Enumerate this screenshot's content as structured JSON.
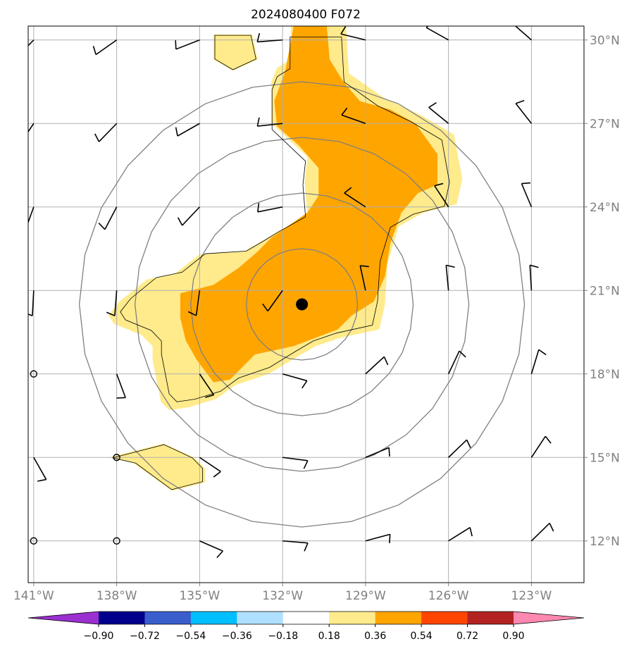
{
  "chart_data": {
    "type": "heatmap",
    "title": "2024080400 F072",
    "xlabel": "",
    "ylabel": "",
    "x_ticks": [
      "141°W",
      "138°W",
      "135°W",
      "132°W",
      "129°W",
      "126°W",
      "123°W"
    ],
    "x_tick_values": [
      -141,
      -138,
      -135,
      -132,
      -129,
      -126,
      -123
    ],
    "y_ticks": [
      "30°N",
      "27°N",
      "24°N",
      "21°N",
      "18°N",
      "15°N",
      "12°N"
    ],
    "y_tick_values": [
      30,
      27,
      24,
      21,
      18,
      15,
      12
    ],
    "xlim": [
      -141.2,
      -121.1
    ],
    "ylim": [
      10.5,
      30.5
    ],
    "grid": true,
    "colorbar": {
      "tick_labels": [
        "−0.90",
        "−0.72",
        "−0.54",
        "−0.36",
        "−0.18",
        "0.18",
        "0.36",
        "0.54",
        "0.72",
        "0.90"
      ],
      "boundaries": [
        -0.9,
        -0.72,
        -0.54,
        -0.36,
        -0.18,
        0.18,
        0.36,
        0.54,
        0.72,
        0.9
      ],
      "colors": [
        "#9b30d0",
        "#00008b",
        "#3a5fcd",
        "#00bfff",
        "#b0e0ff",
        "#ffffff",
        "#ffeb8c",
        "#ffa500",
        "#ff4500",
        "#b22222",
        "#ff88b0"
      ],
      "extend": "both"
    },
    "center_marker": {
      "lon": -131.3,
      "lat": 20.5
    },
    "range_rings_deg": [
      2,
      4,
      6,
      8
    ],
    "shaded_regions": [
      {
        "level": "0.18-0.36",
        "color": "#ffeb8c",
        "polygons": [
          [
            [
              -131.7,
              30.5
            ],
            [
              -129.7,
              30.5
            ],
            [
              -129.6,
              28.8
            ],
            [
              -128.3,
              27.9
            ],
            [
              -127,
              27.3
            ],
            [
              -125.8,
              26.6
            ],
            [
              -125.5,
              25
            ],
            [
              -125.7,
              24.1
            ],
            [
              -126.9,
              23.8
            ],
            [
              -127.8,
              23.3
            ],
            [
              -128.2,
              22
            ],
            [
              -128.3,
              20.5
            ],
            [
              -128.5,
              19.6
            ],
            [
              -129.9,
              19.3
            ],
            [
              -130.8,
              19
            ],
            [
              -131.5,
              18.6
            ],
            [
              -132.5,
              18
            ],
            [
              -133.7,
              17.6
            ],
            [
              -134.4,
              17.1
            ],
            [
              -135.4,
              16.8
            ],
            [
              -136.1,
              16.7
            ],
            [
              -136.4,
              17
            ],
            [
              -136.7,
              18.5
            ],
            [
              -136.7,
              19
            ],
            [
              -137.1,
              19.4
            ],
            [
              -138.1,
              19.8
            ],
            [
              -138.3,
              20.1
            ],
            [
              -137.9,
              20.6
            ],
            [
              -136.9,
              21.4
            ],
            [
              -135.9,
              21.6
            ],
            [
              -135,
              22.3
            ],
            [
              -133.4,
              22.4
            ],
            [
              -132.7,
              22.8
            ],
            [
              -132.2,
              23.1
            ],
            [
              -131.1,
              23.7
            ],
            [
              -131.2,
              24.9
            ],
            [
              -131.1,
              25.8
            ],
            [
              -132.4,
              27
            ],
            [
              -132.4,
              28.5
            ],
            [
              -132.2,
              29
            ],
            [
              -131.7,
              29.3
            ]
          ],
          [
            [
              -134.5,
              30.2
            ],
            [
              -133.1,
              30.2
            ],
            [
              -132.9,
              29.3
            ],
            [
              -133.8,
              28.9
            ],
            [
              -134.5,
              29.3
            ]
          ],
          [
            [
              -136.3,
              15.5
            ],
            [
              -135.2,
              15
            ],
            [
              -134.8,
              14.6
            ],
            [
              -134.8,
              14.1
            ],
            [
              -136,
              13.8
            ],
            [
              -137.4,
              14.8
            ],
            [
              -138.3,
              15
            ]
          ]
        ]
      },
      {
        "level": "0.36-0.54",
        "color": "#ffa500",
        "polygons": [
          [
            [
              -131.6,
              30.5
            ],
            [
              -130.4,
              30.5
            ],
            [
              -130.3,
              29.3
            ],
            [
              -129.8,
              28.5
            ],
            [
              -129.2,
              27.8
            ],
            [
              -128.1,
              27.5
            ],
            [
              -127.2,
              27
            ],
            [
              -126.4,
              25.9
            ],
            [
              -126.4,
              24.8
            ],
            [
              -127.1,
              24.5
            ],
            [
              -127.7,
              23.8
            ],
            [
              -128.1,
              22.7
            ],
            [
              -128.3,
              21.5
            ],
            [
              -128.7,
              20.6
            ],
            [
              -129.5,
              20.1
            ],
            [
              -130,
              19.6
            ],
            [
              -130.8,
              19.3
            ],
            [
              -131.6,
              19
            ],
            [
              -133,
              18.7
            ],
            [
              -133.9,
              17.8
            ],
            [
              -134.5,
              17.7
            ],
            [
              -135.1,
              18.5
            ],
            [
              -135.5,
              19.2
            ],
            [
              -135.7,
              20
            ],
            [
              -135.7,
              20.9
            ],
            [
              -134.5,
              21.2
            ],
            [
              -133.6,
              21.8
            ],
            [
              -132.9,
              22.4
            ],
            [
              -132.4,
              22.9
            ],
            [
              -131.1,
              23.8
            ],
            [
              -130.7,
              24.4
            ],
            [
              -130.7,
              25.4
            ],
            [
              -131.4,
              26.2
            ],
            [
              -132.2,
              26.9
            ],
            [
              -132.3,
              27.8
            ],
            [
              -131.9,
              28.9
            ]
          ]
        ]
      }
    ],
    "wind_barbs": [
      {
        "lon": -141,
        "lat": 30
      },
      {
        "lon": -138,
        "lat": 30
      },
      {
        "lon": -135,
        "lat": 30
      },
      {
        "lon": -132,
        "lat": 30
      },
      {
        "lon": -129,
        "lat": 30
      },
      {
        "lon": -126,
        "lat": 30
      },
      {
        "lon": -123,
        "lat": 30
      },
      {
        "lon": -141,
        "lat": 27
      },
      {
        "lon": -138,
        "lat": 27
      },
      {
        "lon": -135,
        "lat": 27
      },
      {
        "lon": -132,
        "lat": 27
      },
      {
        "lon": -129,
        "lat": 27
      },
      {
        "lon": -126,
        "lat": 27
      },
      {
        "lon": -123,
        "lat": 27
      },
      {
        "lon": -141,
        "lat": 24
      },
      {
        "lon": -138,
        "lat": 24
      },
      {
        "lon": -135,
        "lat": 24
      },
      {
        "lon": -132,
        "lat": 24
      },
      {
        "lon": -129,
        "lat": 24
      },
      {
        "lon": -126,
        "lat": 24
      },
      {
        "lon": -123,
        "lat": 24
      },
      {
        "lon": -141,
        "lat": 21
      },
      {
        "lon": -138,
        "lat": 21
      },
      {
        "lon": -135,
        "lat": 21
      },
      {
        "lon": -132,
        "lat": 21
      },
      {
        "lon": -129,
        "lat": 21
      },
      {
        "lon": -126,
        "lat": 21
      },
      {
        "lon": -123,
        "lat": 21
      },
      {
        "lon": -141,
        "lat": 18,
        "calm": true
      },
      {
        "lon": -138,
        "lat": 18
      },
      {
        "lon": -135,
        "lat": 18
      },
      {
        "lon": -132,
        "lat": 18
      },
      {
        "lon": -129,
        "lat": 18
      },
      {
        "lon": -126,
        "lat": 18
      },
      {
        "lon": -123,
        "lat": 18
      },
      {
        "lon": -141,
        "lat": 15
      },
      {
        "lon": -138,
        "lat": 15,
        "calm": true
      },
      {
        "lon": -135,
        "lat": 15
      },
      {
        "lon": -132,
        "lat": 15
      },
      {
        "lon": -129,
        "lat": 15
      },
      {
        "lon": -126,
        "lat": 15
      },
      {
        "lon": -123,
        "lat": 15
      },
      {
        "lon": -141,
        "lat": 12,
        "calm": true
      },
      {
        "lon": -138,
        "lat": 12,
        "calm": true
      },
      {
        "lon": -135,
        "lat": 12
      },
      {
        "lon": -132,
        "lat": 12
      },
      {
        "lon": -129,
        "lat": 12
      },
      {
        "lon": -126,
        "lat": 12
      },
      {
        "lon": -123,
        "lat": 12
      }
    ]
  }
}
